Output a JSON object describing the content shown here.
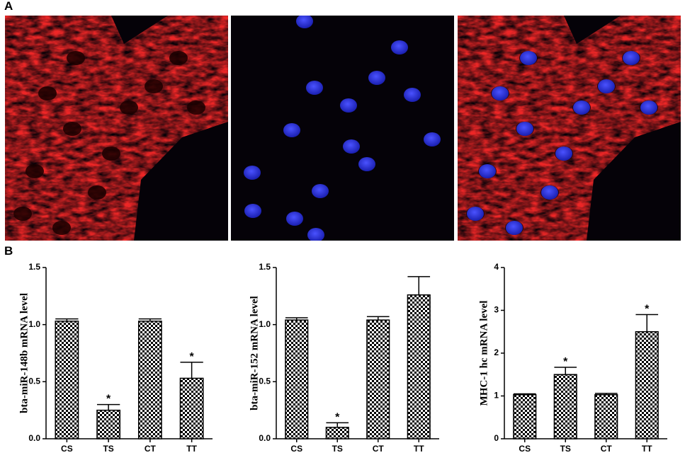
{
  "panels": {
    "a": "A",
    "b": "B"
  },
  "chart_data": [
    {
      "type": "bar",
      "y_label": "bta-miR-148b mRNA level",
      "categories": [
        "CS",
        "TS",
        "CT",
        "TT"
      ],
      "values": [
        1.03,
        0.25,
        1.03,
        0.53
      ],
      "errors": [
        0.02,
        0.05,
        0.02,
        0.14
      ],
      "significance": [
        null,
        "*",
        null,
        "*"
      ],
      "ylim": [
        0,
        1.5
      ],
      "yticks": [
        {
          "value": 0,
          "label": "0.0"
        },
        {
          "value": 0.5,
          "label": "0.5"
        },
        {
          "value": 1,
          "label": "1.0"
        },
        {
          "value": 1.5,
          "label": "1.5"
        }
      ]
    },
    {
      "type": "bar",
      "y_label": "bta-miR-152 mRNA level",
      "categories": [
        "CS",
        "TS",
        "CT",
        "TT"
      ],
      "values": [
        1.04,
        0.1,
        1.04,
        1.26
      ],
      "errors": [
        0.02,
        0.04,
        0.03,
        0.16
      ],
      "significance": [
        null,
        "*",
        null,
        null
      ],
      "ylim": [
        0,
        1.5
      ],
      "yticks": [
        {
          "value": 0,
          "label": "0.0"
        },
        {
          "value": 0.5,
          "label": "0.5"
        },
        {
          "value": 1,
          "label": "1.0"
        },
        {
          "value": 1.5,
          "label": "1.5"
        }
      ]
    },
    {
      "type": "bar",
      "y_label": "MHC-1 hc mRNA level",
      "categories": [
        "CS",
        "TS",
        "CT",
        "TT"
      ],
      "values": [
        1.03,
        1.5,
        1.03,
        2.5
      ],
      "errors": [
        0.02,
        0.17,
        0.03,
        0.4
      ],
      "significance": [
        null,
        "*",
        null,
        "*"
      ],
      "ylim": [
        0,
        4
      ],
      "yticks": [
        0,
        1,
        2,
        3,
        4
      ]
    }
  ]
}
